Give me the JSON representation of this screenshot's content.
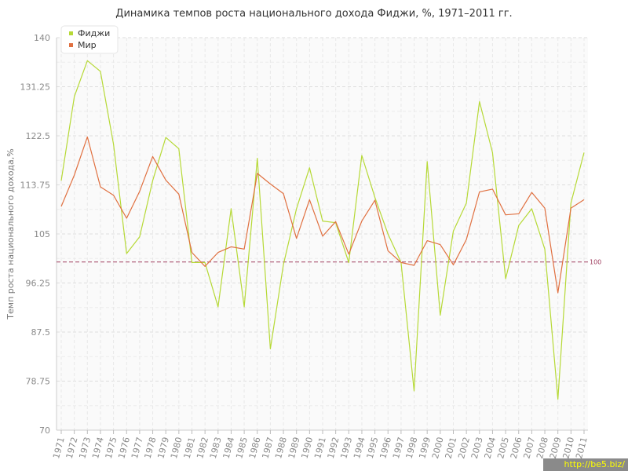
{
  "chart_data": {
    "type": "line",
    "title": "Динамика темпов роста национального дохода Фиджи, %, 1971–2011 гг.",
    "xlabel": "",
    "ylabel": "Темп роста национального дохода,%",
    "ylim": [
      70,
      140
    ],
    "yticks": [
      "70",
      "78.75",
      "87.5",
      "96.25",
      "105",
      "113.75",
      "122.5",
      "131.25",
      "140"
    ],
    "x": [
      "1971",
      "1972",
      "1973",
      "1974",
      "1975",
      "1976",
      "1977",
      "1978",
      "1979",
      "1980",
      "1981",
      "1982",
      "1983",
      "1984",
      "1985",
      "1986",
      "1987",
      "1988",
      "1989",
      "1990",
      "1991",
      "1992",
      "1993",
      "1994",
      "1995",
      "1996",
      "1997",
      "1998",
      "1999",
      "2000",
      "2001",
      "2002",
      "2003",
      "2004",
      "2005",
      "2006",
      "2007",
      "2008",
      "2009",
      "2010",
      "2011"
    ],
    "series": [
      {
        "name": "Фиджи",
        "color": "#b6d936",
        "values": [
          114.5,
          129.5,
          135.9,
          134,
          121,
          101.5,
          104.5,
          114.5,
          122.2,
          120.2,
          99.9,
          99.9,
          92,
          109.5,
          92,
          118.5,
          84.5,
          99.5,
          109.5,
          116.8,
          107.3,
          107,
          99.9,
          119,
          111.5,
          105,
          99.9,
          77,
          117.9,
          90.5,
          105.5,
          110.5,
          128.6,
          119.5,
          97,
          106.5,
          109.5,
          102.3,
          75.5,
          110.5,
          119.5
        ]
      },
      {
        "name": "Мир",
        "color": "#e07040",
        "values": [
          109.9,
          115.5,
          122.3,
          113.4,
          111.9,
          107.8,
          112.6,
          118.8,
          114.6,
          112.1,
          101.7,
          99.2,
          101.7,
          102.7,
          102.3,
          115.8,
          113.9,
          112.2,
          104.2,
          111.1,
          104.6,
          107.2,
          101.4,
          107.3,
          111,
          102,
          99.9,
          99.4,
          103.8,
          103.1,
          99.5,
          104,
          112.5,
          113,
          108.4,
          108.6,
          112.4,
          109.6,
          94.5,
          109.6,
          111.1
        ]
      }
    ],
    "reference_line": {
      "value": 100,
      "label": "100",
      "color": "#a04060"
    },
    "grid": true,
    "legend_position": "top-left"
  },
  "watermark": "http://be5.biz/"
}
